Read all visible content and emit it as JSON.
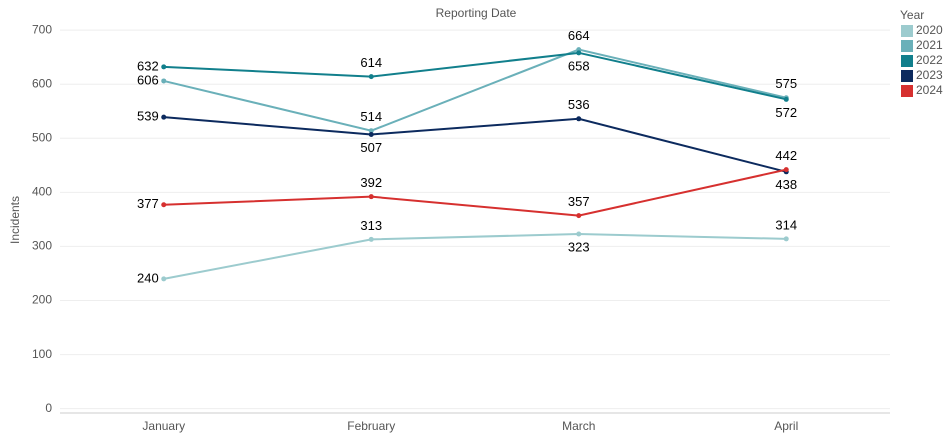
{
  "chart_data": {
    "type": "line",
    "title": "Reporting Date",
    "y_label": "Incidents",
    "legend_title": "Year",
    "legend_position": "top-right",
    "categories": [
      "January",
      "February",
      "March",
      "April"
    ],
    "series": [
      {
        "name": "2020",
        "color": "#9ccbce",
        "values": [
          240,
          313,
          323,
          314
        ]
      },
      {
        "name": "2021",
        "color": "#6ab0b9",
        "values": [
          606,
          514,
          664,
          575
        ]
      },
      {
        "name": "2022",
        "color": "#117f8c",
        "values": [
          632,
          614,
          658,
          572
        ]
      },
      {
        "name": "2023",
        "color": "#0c2a5e",
        "values": [
          539,
          507,
          536,
          438
        ]
      },
      {
        "name": "2024",
        "color": "#d6302f",
        "values": [
          377,
          392,
          357,
          442
        ]
      }
    ],
    "ylim": [
      -8,
      715
    ],
    "yticks": [
      0,
      100,
      200,
      300,
      400,
      500,
      600,
      700
    ],
    "grid": true
  }
}
